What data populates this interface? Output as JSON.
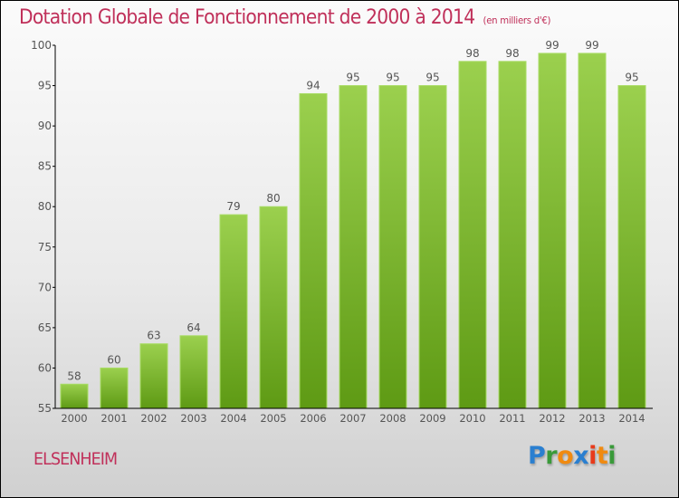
{
  "header": {
    "title": "Dotation Globale de Fonctionnement de 2000 à 2014",
    "unit": "(en milliers d'€)"
  },
  "footer": {
    "place": "ELSENHEIM",
    "logo_letters": [
      {
        "ch": "P",
        "color": "#2a7fd0"
      },
      {
        "ch": "r",
        "color": "#3a9a3a"
      },
      {
        "ch": "o",
        "color": "#f08a10"
      },
      {
        "ch": "x",
        "color": "#2a7fd0"
      },
      {
        "ch": "i",
        "color": "#e83a1a"
      },
      {
        "ch": "t",
        "color": "#f08a10"
      },
      {
        "ch": "i",
        "color": "#3a9a3a"
      }
    ]
  },
  "colors": {
    "title": "#c0305a",
    "bar_top": "#9bd04e",
    "bar_bottom": "#5e9a14",
    "axis": "#000000",
    "tick_label": "#555555"
  },
  "chart_data": {
    "type": "bar",
    "title": "Dotation Globale de Fonctionnement de 2000 à 2014",
    "subtitle": "(en milliers d'€)",
    "xlabel": "",
    "ylabel": "",
    "categories": [
      "2000",
      "2001",
      "2002",
      "2003",
      "2004",
      "2005",
      "2006",
      "2007",
      "2008",
      "2009",
      "2010",
      "2011",
      "2012",
      "2013",
      "2014"
    ],
    "values": [
      58,
      60,
      63,
      64,
      79,
      80,
      94,
      95,
      95,
      95,
      98,
      98,
      99,
      99,
      95
    ],
    "ylim": [
      55,
      100
    ],
    "yticks": [
      55,
      60,
      65,
      70,
      75,
      80,
      85,
      90,
      95,
      100
    ],
    "grid": false,
    "legend": "none",
    "data_labels": true
  }
}
